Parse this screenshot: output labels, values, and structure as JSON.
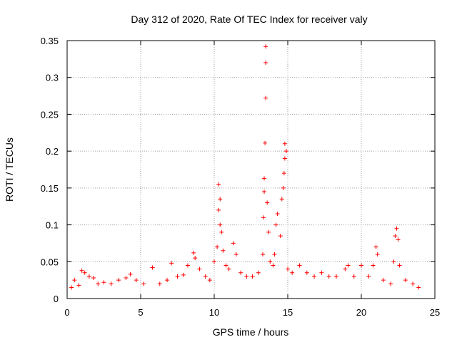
{
  "chart_data": {
    "type": "scatter",
    "title": "Day 312 of 2020, Rate Of TEC Index for receiver valy",
    "xlabel": "GPS time / hours",
    "ylabel": "ROTI / TECUs",
    "xlim": [
      0,
      25
    ],
    "ylim": [
      0,
      0.35
    ],
    "x_ticks": [
      0,
      5,
      10,
      15,
      20,
      25
    ],
    "y_ticks": [
      0,
      0.05,
      0.1,
      0.15,
      0.2,
      0.25,
      0.3,
      0.35
    ],
    "x_tick_labels": [
      "0",
      "5",
      "10",
      "15",
      "20",
      "25"
    ],
    "y_tick_labels": [
      "0",
      "0.05",
      "0.1",
      "0.15",
      "0.2",
      "0.25",
      "0.3",
      "0.35"
    ],
    "grid": true,
    "marker": "+",
    "marker_color": "#ff0000",
    "series": [
      {
        "name": "ROTI",
        "points": [
          [
            0.3,
            0.015
          ],
          [
            0.5,
            0.025
          ],
          [
            0.8,
            0.018
          ],
          [
            1.0,
            0.038
          ],
          [
            1.2,
            0.035
          ],
          [
            1.5,
            0.03
          ],
          [
            1.8,
            0.028
          ],
          [
            2.1,
            0.02
          ],
          [
            2.5,
            0.022
          ],
          [
            3.0,
            0.02
          ],
          [
            3.5,
            0.025
          ],
          [
            4.0,
            0.028
          ],
          [
            4.3,
            0.033
          ],
          [
            4.7,
            0.025
          ],
          [
            5.2,
            0.02
          ],
          [
            5.8,
            0.042
          ],
          [
            6.3,
            0.02
          ],
          [
            6.8,
            0.025
          ],
          [
            7.1,
            0.048
          ],
          [
            7.5,
            0.03
          ],
          [
            7.9,
            0.032
          ],
          [
            8.2,
            0.045
          ],
          [
            8.6,
            0.062
          ],
          [
            8.7,
            0.055
          ],
          [
            9.0,
            0.04
          ],
          [
            9.4,
            0.03
          ],
          [
            9.7,
            0.025
          ],
          [
            10.0,
            0.05
          ],
          [
            10.2,
            0.07
          ],
          [
            10.3,
            0.12
          ],
          [
            10.3,
            0.155
          ],
          [
            10.4,
            0.135
          ],
          [
            10.4,
            0.1
          ],
          [
            10.5,
            0.09
          ],
          [
            10.6,
            0.065
          ],
          [
            10.8,
            0.045
          ],
          [
            11.0,
            0.04
          ],
          [
            11.3,
            0.075
          ],
          [
            11.5,
            0.06
          ],
          [
            11.8,
            0.035
          ],
          [
            12.2,
            0.03
          ],
          [
            12.6,
            0.03
          ],
          [
            13.0,
            0.035
          ],
          [
            13.3,
            0.06
          ],
          [
            13.35,
            0.11
          ],
          [
            13.4,
            0.145
          ],
          [
            13.4,
            0.163
          ],
          [
            13.45,
            0.211
          ],
          [
            13.5,
            0.272
          ],
          [
            13.5,
            0.32
          ],
          [
            13.5,
            0.342
          ],
          [
            13.6,
            0.13
          ],
          [
            13.7,
            0.09
          ],
          [
            13.8,
            0.05
          ],
          [
            14.0,
            0.045
          ],
          [
            14.1,
            0.06
          ],
          [
            14.2,
            0.1
          ],
          [
            14.3,
            0.115
          ],
          [
            14.5,
            0.085
          ],
          [
            14.6,
            0.135
          ],
          [
            14.7,
            0.15
          ],
          [
            14.75,
            0.17
          ],
          [
            14.8,
            0.19
          ],
          [
            14.8,
            0.21
          ],
          [
            14.9,
            0.2
          ],
          [
            15.0,
            0.04
          ],
          [
            15.3,
            0.035
          ],
          [
            15.8,
            0.045
          ],
          [
            16.3,
            0.035
          ],
          [
            16.8,
            0.03
          ],
          [
            17.3,
            0.035
          ],
          [
            17.8,
            0.03
          ],
          [
            18.3,
            0.03
          ],
          [
            18.9,
            0.04
          ],
          [
            19.1,
            0.045
          ],
          [
            19.5,
            0.03
          ],
          [
            20.0,
            0.045
          ],
          [
            20.5,
            0.03
          ],
          [
            20.8,
            0.045
          ],
          [
            21.0,
            0.07
          ],
          [
            21.1,
            0.06
          ],
          [
            21.5,
            0.025
          ],
          [
            22.0,
            0.02
          ],
          [
            22.2,
            0.05
          ],
          [
            22.3,
            0.085
          ],
          [
            22.4,
            0.095
          ],
          [
            22.5,
            0.08
          ],
          [
            22.6,
            0.045
          ],
          [
            23.0,
            0.025
          ],
          [
            23.5,
            0.02
          ],
          [
            23.9,
            0.015
          ]
        ]
      }
    ]
  }
}
